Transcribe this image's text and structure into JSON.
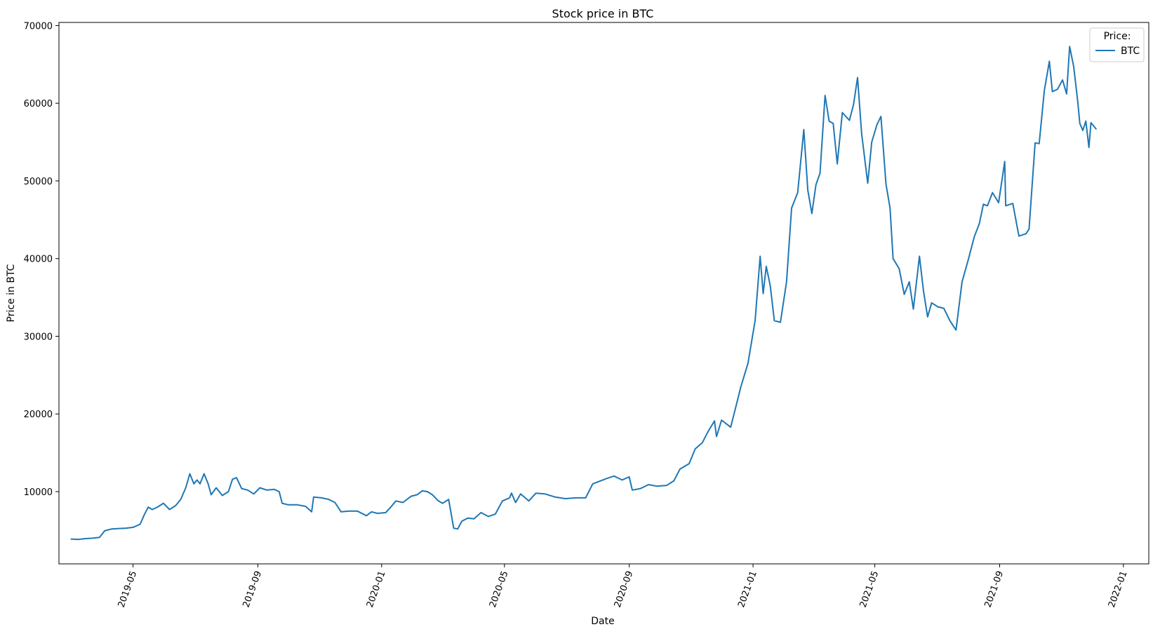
{
  "chart_data": {
    "type": "line",
    "title": "Stock price in BTC",
    "xlabel": "Date",
    "ylabel": "Price in BTC",
    "x_ticks": [
      "2019-05",
      "2019-09",
      "2020-01",
      "2020-05",
      "2020-09",
      "2021-01",
      "2021-05",
      "2021-09",
      "2022-01"
    ],
    "y_ticks": [
      "10000",
      "20000",
      "30000",
      "40000",
      "50000",
      "60000",
      "70000"
    ],
    "xlim": [
      "2019-02-17",
      "2022-01-26"
    ],
    "ylim": [
      700,
      70400
    ],
    "grid": false,
    "legend": {
      "title": "Price:",
      "position": "top-right",
      "entries": [
        "BTC"
      ]
    },
    "series": [
      {
        "name": "BTC",
        "color": "#1f77b4",
        "points": [
          [
            "2019-03-01",
            3900
          ],
          [
            "2019-03-08",
            3850
          ],
          [
            "2019-03-15",
            3950
          ],
          [
            "2019-03-22",
            4000
          ],
          [
            "2019-03-29",
            4100
          ],
          [
            "2019-04-03",
            4950
          ],
          [
            "2019-04-10",
            5200
          ],
          [
            "2019-04-17",
            5250
          ],
          [
            "2019-04-24",
            5300
          ],
          [
            "2019-05-01",
            5400
          ],
          [
            "2019-05-08",
            5800
          ],
          [
            "2019-05-12",
            7000
          ],
          [
            "2019-05-16",
            8000
          ],
          [
            "2019-05-20",
            7700
          ],
          [
            "2019-05-25",
            8000
          ],
          [
            "2019-05-31",
            8500
          ],
          [
            "2019-06-06",
            7700
          ],
          [
            "2019-06-12",
            8200
          ],
          [
            "2019-06-17",
            9000
          ],
          [
            "2019-06-22",
            10500
          ],
          [
            "2019-06-26",
            12300
          ],
          [
            "2019-06-30",
            11000
          ],
          [
            "2019-07-03",
            11500
          ],
          [
            "2019-07-06",
            11000
          ],
          [
            "2019-07-10",
            12300
          ],
          [
            "2019-07-14",
            11000
          ],
          [
            "2019-07-17",
            9600
          ],
          [
            "2019-07-22",
            10500
          ],
          [
            "2019-07-28",
            9500
          ],
          [
            "2019-08-03",
            10000
          ],
          [
            "2019-08-07",
            11600
          ],
          [
            "2019-08-11",
            11800
          ],
          [
            "2019-08-16",
            10400
          ],
          [
            "2019-08-22",
            10200
          ],
          [
            "2019-08-28",
            9700
          ],
          [
            "2019-09-03",
            10500
          ],
          [
            "2019-09-10",
            10200
          ],
          [
            "2019-09-17",
            10300
          ],
          [
            "2019-09-22",
            10000
          ],
          [
            "2019-09-25",
            8500
          ],
          [
            "2019-10-01",
            8300
          ],
          [
            "2019-10-10",
            8300
          ],
          [
            "2019-10-18",
            8100
          ],
          [
            "2019-10-24",
            7400
          ],
          [
            "2019-10-26",
            9300
          ],
          [
            "2019-11-03",
            9200
          ],
          [
            "2019-11-10",
            9000
          ],
          [
            "2019-11-16",
            8600
          ],
          [
            "2019-11-22",
            7400
          ],
          [
            "2019-11-30",
            7500
          ],
          [
            "2019-12-08",
            7500
          ],
          [
            "2019-12-17",
            6900
          ],
          [
            "2019-12-22",
            7400
          ],
          [
            "2019-12-28",
            7200
          ],
          [
            "2020-01-05",
            7300
          ],
          [
            "2020-01-10",
            8000
          ],
          [
            "2020-01-15",
            8800
          ],
          [
            "2020-01-22",
            8600
          ],
          [
            "2020-01-30",
            9400
          ],
          [
            "2020-02-05",
            9600
          ],
          [
            "2020-02-10",
            10100
          ],
          [
            "2020-02-15",
            10000
          ],
          [
            "2020-02-20",
            9600
          ],
          [
            "2020-02-26",
            8800
          ],
          [
            "2020-03-01",
            8500
          ],
          [
            "2020-03-07",
            9000
          ],
          [
            "2020-03-12",
            5300
          ],
          [
            "2020-03-16",
            5200
          ],
          [
            "2020-03-20",
            6200
          ],
          [
            "2020-03-26",
            6600
          ],
          [
            "2020-04-01",
            6500
          ],
          [
            "2020-04-08",
            7300
          ],
          [
            "2020-04-15",
            6800
          ],
          [
            "2020-04-22",
            7100
          ],
          [
            "2020-04-29",
            8800
          ],
          [
            "2020-05-06",
            9200
          ],
          [
            "2020-05-08",
            9800
          ],
          [
            "2020-05-12",
            8600
          ],
          [
            "2020-05-17",
            9700
          ],
          [
            "2020-05-25",
            8800
          ],
          [
            "2020-06-01",
            9800
          ],
          [
            "2020-06-10",
            9700
          ],
          [
            "2020-06-20",
            9300
          ],
          [
            "2020-06-30",
            9100
          ],
          [
            "2020-07-10",
            9200
          ],
          [
            "2020-07-20",
            9200
          ],
          [
            "2020-07-27",
            11000
          ],
          [
            "2020-08-02",
            11300
          ],
          [
            "2020-08-10",
            11700
          ],
          [
            "2020-08-17",
            12000
          ],
          [
            "2020-08-25",
            11500
          ],
          [
            "2020-09-01",
            11900
          ],
          [
            "2020-09-04",
            10200
          ],
          [
            "2020-09-12",
            10400
          ],
          [
            "2020-09-20",
            10900
          ],
          [
            "2020-09-28",
            10700
          ],
          [
            "2020-10-08",
            10800
          ],
          [
            "2020-10-15",
            11400
          ],
          [
            "2020-10-21",
            12900
          ],
          [
            "2020-10-30",
            13600
          ],
          [
            "2020-11-05",
            15500
          ],
          [
            "2020-11-12",
            16300
          ],
          [
            "2020-11-18",
            17800
          ],
          [
            "2020-11-24",
            19100
          ],
          [
            "2020-11-26",
            17100
          ],
          [
            "2020-12-01",
            19200
          ],
          [
            "2020-12-10",
            18300
          ],
          [
            "2020-12-16",
            21400
          ],
          [
            "2020-12-20",
            23500
          ],
          [
            "2020-12-27",
            26500
          ],
          [
            "2021-01-03",
            32000
          ],
          [
            "2021-01-08",
            40300
          ],
          [
            "2021-01-11",
            35500
          ],
          [
            "2021-01-14",
            39000
          ],
          [
            "2021-01-18",
            36500
          ],
          [
            "2021-01-22",
            32000
          ],
          [
            "2021-01-28",
            31800
          ],
          [
            "2021-02-03",
            37000
          ],
          [
            "2021-02-08",
            46500
          ],
          [
            "2021-02-14",
            48500
          ],
          [
            "2021-02-20",
            56600
          ],
          [
            "2021-02-24",
            48800
          ],
          [
            "2021-02-28",
            45800
          ],
          [
            "2021-03-04",
            49500
          ],
          [
            "2021-03-08",
            51000
          ],
          [
            "2021-03-13",
            61000
          ],
          [
            "2021-03-17",
            57700
          ],
          [
            "2021-03-21",
            57400
          ],
          [
            "2021-03-25",
            52200
          ],
          [
            "2021-03-30",
            58800
          ],
          [
            "2021-04-06",
            57800
          ],
          [
            "2021-04-10",
            59800
          ],
          [
            "2021-04-14",
            63300
          ],
          [
            "2021-04-18",
            56100
          ],
          [
            "2021-04-24",
            49700
          ],
          [
            "2021-04-28",
            55000
          ],
          [
            "2021-05-03",
            57200
          ],
          [
            "2021-05-07",
            58300
          ],
          [
            "2021-05-12",
            49600
          ],
          [
            "2021-05-16",
            46500
          ],
          [
            "2021-05-19",
            40000
          ],
          [
            "2021-05-25",
            38700
          ],
          [
            "2021-05-30",
            35400
          ],
          [
            "2021-06-04",
            37000
          ],
          [
            "2021-06-08",
            33500
          ],
          [
            "2021-06-14",
            40300
          ],
          [
            "2021-06-18",
            35800
          ],
          [
            "2021-06-22",
            32500
          ],
          [
            "2021-06-26",
            34300
          ],
          [
            "2021-07-02",
            33800
          ],
          [
            "2021-07-08",
            33600
          ],
          [
            "2021-07-14",
            32000
          ],
          [
            "2021-07-20",
            30800
          ],
          [
            "2021-07-26",
            37000
          ],
          [
            "2021-08-01",
            39800
          ],
          [
            "2021-08-07",
            42800
          ],
          [
            "2021-08-12",
            44500
          ],
          [
            "2021-08-16",
            47000
          ],
          [
            "2021-08-20",
            46800
          ],
          [
            "2021-08-25",
            48500
          ],
          [
            "2021-08-31",
            47200
          ],
          [
            "2021-09-06",
            52500
          ],
          [
            "2021-09-07",
            46800
          ],
          [
            "2021-09-14",
            47100
          ],
          [
            "2021-09-20",
            42900
          ],
          [
            "2021-09-27",
            43200
          ],
          [
            "2021-09-30",
            43800
          ],
          [
            "2021-10-06",
            54900
          ],
          [
            "2021-10-10",
            54800
          ],
          [
            "2021-10-15",
            61600
          ],
          [
            "2021-10-20",
            65400
          ],
          [
            "2021-10-23",
            61500
          ],
          [
            "2021-10-28",
            61800
          ],
          [
            "2021-11-02",
            63000
          ],
          [
            "2021-11-06",
            61200
          ],
          [
            "2021-11-09",
            67300
          ],
          [
            "2021-11-13",
            64700
          ],
          [
            "2021-11-17",
            60200
          ],
          [
            "2021-11-19",
            57400
          ],
          [
            "2021-11-22",
            56500
          ],
          [
            "2021-11-25",
            57700
          ],
          [
            "2021-11-28",
            54300
          ],
          [
            "2021-11-30",
            57500
          ],
          [
            "2021-12-05",
            56700
          ]
        ]
      }
    ]
  }
}
